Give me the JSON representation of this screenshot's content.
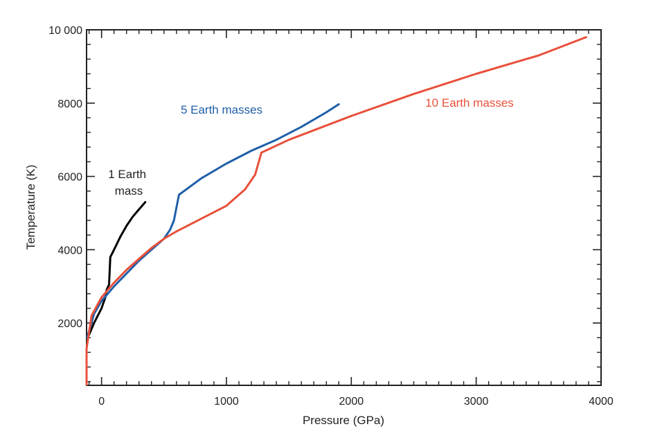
{
  "chart_data": {
    "type": "line",
    "title": "",
    "xlabel": "Pressure (GPa)",
    "ylabel": "Temperature (K)",
    "xlim": [
      -120,
      4000
    ],
    "ylim": [
      300,
      10000
    ],
    "x_ticks": [
      0,
      1000,
      2000,
      3000,
      4000
    ],
    "x_tick_labels": [
      "0",
      "1000",
      "2000",
      "3000",
      "4000"
    ],
    "y_ticks": [
      2000,
      4000,
      6000,
      8000,
      10000
    ],
    "y_tick_labels": [
      "2000",
      "4000",
      "6000",
      "8000",
      "10 000"
    ],
    "grid": false,
    "series": [
      {
        "name": "1 Earth mass",
        "label_lines": [
          "1 Earth",
          "mass"
        ],
        "color": "#000000",
        "points": [
          [
            -110,
            1600
          ],
          [
            -60,
            2000
          ],
          [
            0,
            2400
          ],
          [
            30,
            2700
          ],
          [
            40,
            2900
          ],
          [
            60,
            3050
          ],
          [
            70,
            3800
          ],
          [
            100,
            4000
          ],
          [
            150,
            4350
          ],
          [
            200,
            4650
          ],
          [
            250,
            4900
          ],
          [
            300,
            5100
          ],
          [
            350,
            5300
          ]
        ]
      },
      {
        "name": "5 Earth masses",
        "label_lines": [
          "5 Earth masses"
        ],
        "color": "#1f5fa8",
        "points": [
          [
            -115,
            1600
          ],
          [
            -60,
            2250
          ],
          [
            0,
            2600
          ],
          [
            100,
            3000
          ],
          [
            200,
            3350
          ],
          [
            300,
            3700
          ],
          [
            400,
            4000
          ],
          [
            500,
            4300
          ],
          [
            550,
            4550
          ],
          [
            580,
            4800
          ],
          [
            600,
            5150
          ],
          [
            620,
            5500
          ],
          [
            800,
            5950
          ],
          [
            1000,
            6350
          ],
          [
            1200,
            6700
          ],
          [
            1400,
            7000
          ],
          [
            1600,
            7350
          ],
          [
            1800,
            7750
          ],
          [
            1900,
            7970
          ]
        ]
      },
      {
        "name": "10 Earth masses",
        "label_lines": [
          "10 Earth masses"
        ],
        "color": "#e8503a",
        "points": [
          [
            -120,
            320
          ],
          [
            -120,
            1300
          ],
          [
            -80,
            2200
          ],
          [
            0,
            2700
          ],
          [
            100,
            3100
          ],
          [
            200,
            3450
          ],
          [
            300,
            3750
          ],
          [
            400,
            4050
          ],
          [
            500,
            4300
          ],
          [
            600,
            4500
          ],
          [
            800,
            4850
          ],
          [
            1000,
            5200
          ],
          [
            1150,
            5650
          ],
          [
            1230,
            6050
          ],
          [
            1280,
            6650
          ],
          [
            1500,
            7000
          ],
          [
            2000,
            7650
          ],
          [
            2500,
            8250
          ],
          [
            3000,
            8800
          ],
          [
            3500,
            9300
          ],
          [
            3880,
            9800
          ]
        ]
      }
    ]
  }
}
